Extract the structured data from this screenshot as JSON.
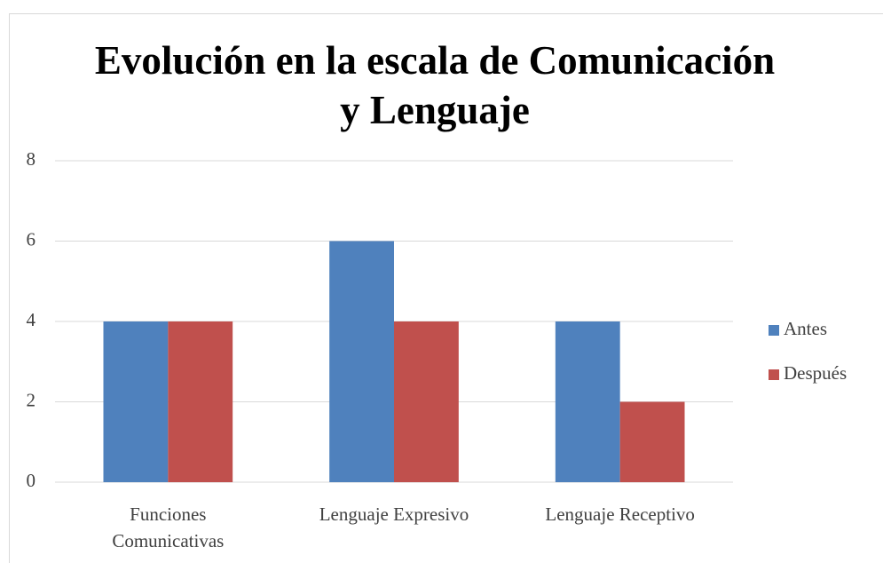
{
  "chart_data": {
    "type": "bar",
    "title": "Evolución en la escala de Comunicación y Lenguaje",
    "categories": [
      "Funciones Comunicativas",
      "Lenguaje Expresivo",
      "Lenguaje Receptivo"
    ],
    "series": [
      {
        "name": "Antes",
        "color": "#4f81bd",
        "values": [
          4,
          6,
          4
        ]
      },
      {
        "name": "Después",
        "color": "#c0504d",
        "values": [
          4,
          4,
          2
        ]
      }
    ],
    "ylim": [
      0,
      8
    ],
    "yticks": [
      0,
      2,
      4,
      6,
      8
    ],
    "grid": true,
    "legend": "right"
  }
}
